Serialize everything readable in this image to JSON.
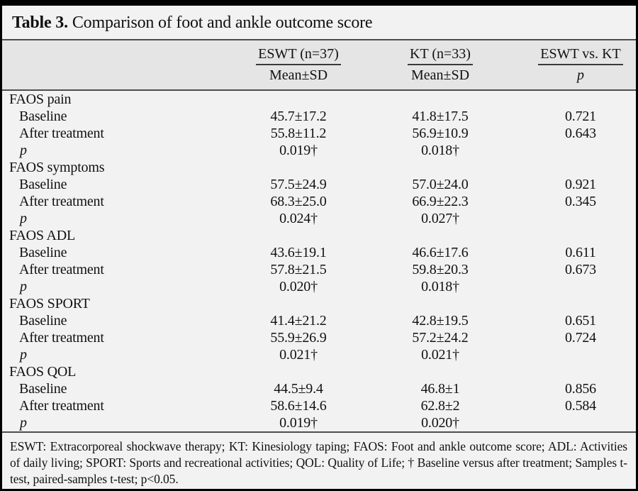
{
  "colors": {
    "page_background": "#f2f2f2",
    "header_band": "#e5e5e5",
    "frame_border": "#000000",
    "rule": "#4d4d4d",
    "text": "#111111"
  },
  "title": {
    "label": "Table 3.",
    "text": "Comparison of foot and ankle outcome score"
  },
  "table": {
    "header": {
      "groups": [
        {
          "label": "ESWT (n=37)",
          "sub": "Mean±SD"
        },
        {
          "label": "KT (n=33)",
          "sub": "Mean±SD"
        },
        {
          "label": "ESWT vs. KT",
          "sub": "p"
        }
      ]
    },
    "rows": [
      {
        "type": "section",
        "label": "FAOS pain",
        "eswt": "",
        "kt": "",
        "p": ""
      },
      {
        "type": "sub",
        "label": "Baseline",
        "eswt": "45.7±17.2",
        "kt": "41.8±17.5",
        "p": "0.721"
      },
      {
        "type": "sub",
        "label": "After treatment",
        "eswt": "55.8±11.2",
        "kt": "56.9±10.9",
        "p": "0.643"
      },
      {
        "type": "pvalue",
        "label": "p",
        "eswt": "0.019†",
        "kt": "0.018†",
        "p": ""
      },
      {
        "type": "section",
        "label": "FAOS symptoms",
        "eswt": "",
        "kt": "",
        "p": ""
      },
      {
        "type": "sub",
        "label": "Baseline",
        "eswt": "57.5±24.9",
        "kt": "57.0±24.0",
        "p": "0.921"
      },
      {
        "type": "sub",
        "label": "After treatment",
        "eswt": "68.3±25.0",
        "kt": "66.9±22.3",
        "p": "0.345"
      },
      {
        "type": "pvalue",
        "label": "p",
        "eswt": "0.024†",
        "kt": "0.027†",
        "p": ""
      },
      {
        "type": "section",
        "label": "FAOS ADL",
        "eswt": "",
        "kt": "",
        "p": ""
      },
      {
        "type": "sub",
        "label": "Baseline",
        "eswt": "43.6±19.1",
        "kt": "46.6±17.6",
        "p": "0.611"
      },
      {
        "type": "sub",
        "label": "After treatment",
        "eswt": "57.8±21.5",
        "kt": "59.8±20.3",
        "p": "0.673"
      },
      {
        "type": "pvalue",
        "label": "p",
        "eswt": "0.020†",
        "kt": "0.018†",
        "p": ""
      },
      {
        "type": "section",
        "label": "FAOS SPORT",
        "eswt": "",
        "kt": "",
        "p": ""
      },
      {
        "type": "sub",
        "label": "Baseline",
        "eswt": "41.4±21.2",
        "kt": "42.8±19.5",
        "p": "0.651"
      },
      {
        "type": "sub",
        "label": "After treatment",
        "eswt": "55.9±26.9",
        "kt": "57.2±24.2",
        "p": "0.724"
      },
      {
        "type": "pvalue",
        "label": "p",
        "eswt": "0.021†",
        "kt": "0.021†",
        "p": ""
      },
      {
        "type": "section",
        "label": "FAOS QOL",
        "eswt": "",
        "kt": "",
        "p": ""
      },
      {
        "type": "sub",
        "label": "Baseline",
        "eswt": "44.5±9.4",
        "kt": "46.8±1",
        "p": "0.856"
      },
      {
        "type": "sub",
        "label": "After treatment",
        "eswt": "58.6±14.6",
        "kt": "62.8±2",
        "p": "0.584"
      },
      {
        "type": "pvalue",
        "label": "p",
        "eswt": "0.019†",
        "kt": "0.020†",
        "p": ""
      }
    ]
  },
  "footnote": "ESWT: Extracorporeal shockwave therapy; KT: Kinesiology taping; FAOS: Foot and ankle outcome score; ADL: Activities of daily living; SPORT: Sports and recreational activities; QOL: Quality of Life; † Baseline versus after treatment; Samples t-test, paired-samples t-test; p<0.05."
}
